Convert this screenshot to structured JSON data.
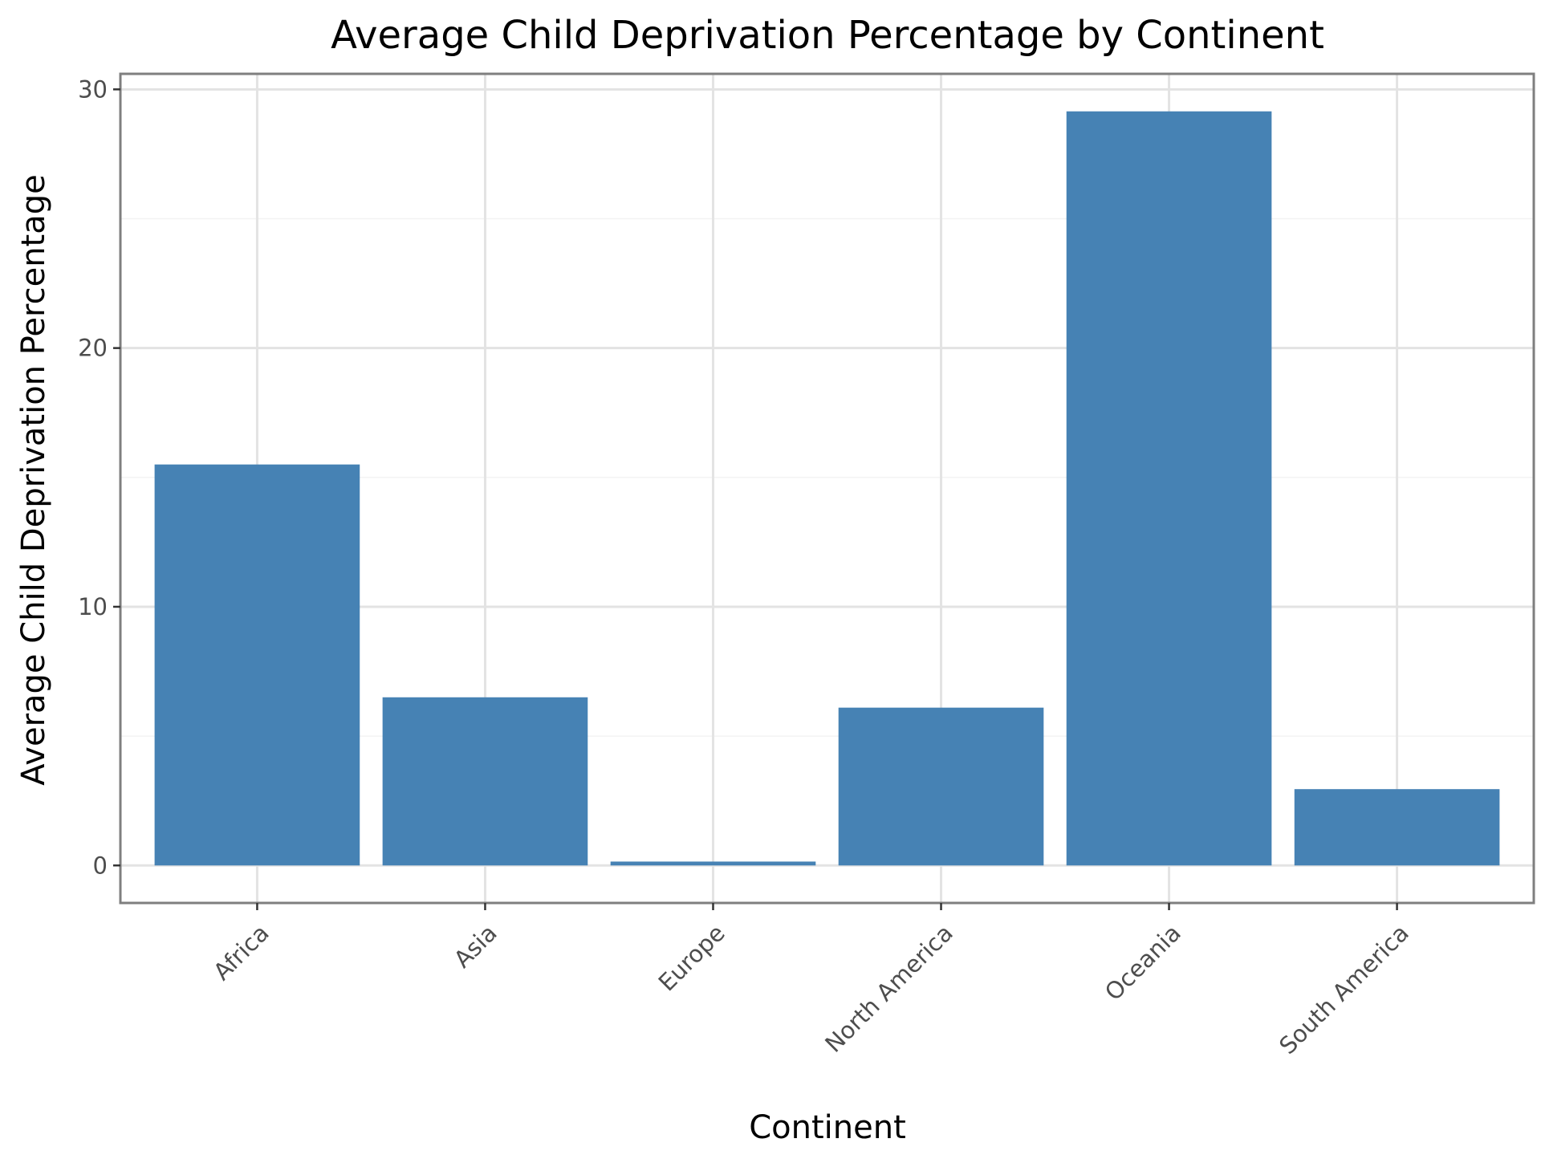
{
  "chart_data": {
    "type": "bar",
    "title": "Average Child Deprivation Percentage by Continent",
    "xlabel": "Continent",
    "ylabel": "Average Child Deprivation Percentage",
    "categories": [
      "Africa",
      "Asia",
      "Europe",
      "North America",
      "Oceania",
      "South America"
    ],
    "values": [
      15.5,
      6.5,
      0.15,
      6.1,
      29.15,
      2.95
    ],
    "ylim": [
      -1.45,
      30.6
    ],
    "yticks": [
      0,
      10,
      20,
      30
    ],
    "grid": true,
    "legend": "none",
    "bar_color": "#4682b4"
  }
}
